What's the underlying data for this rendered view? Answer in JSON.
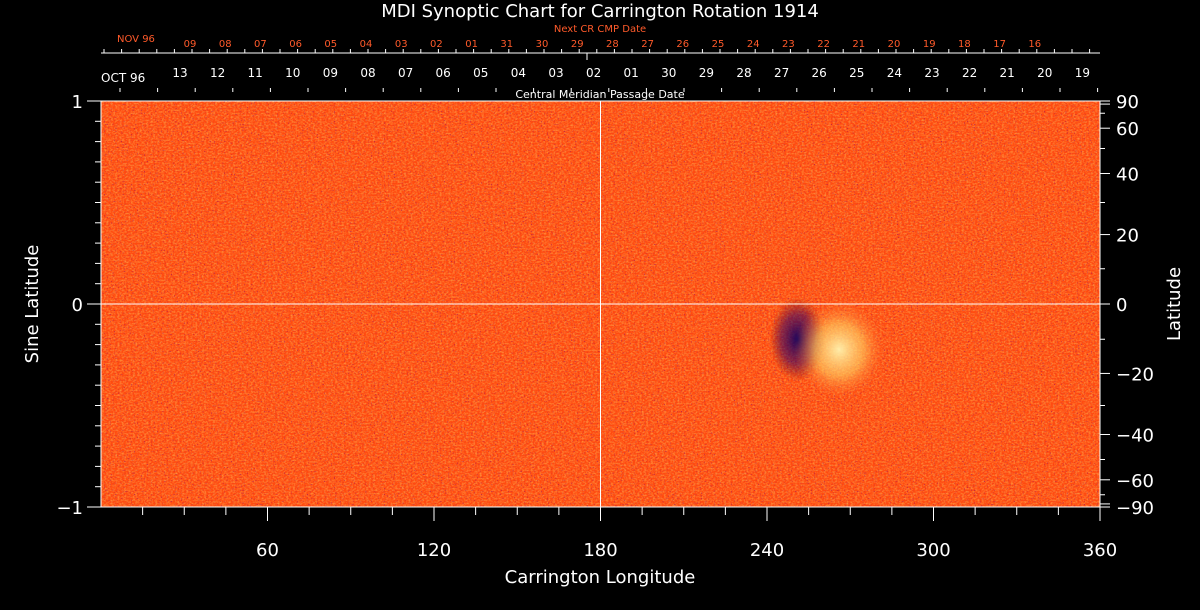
{
  "chart_data": {
    "type": "heatmap",
    "title": "MDI Synoptic Chart for Carrington Rotation 1914",
    "xlabel": "Carrington Longitude",
    "ylabel": "Sine Latitude",
    "ylabel_right": "Latitude",
    "xlim": [
      0,
      360
    ],
    "ylim": [
      -1,
      1
    ],
    "x_ticks": [
      60,
      120,
      180,
      240,
      300,
      360
    ],
    "y_ticks": [
      "1",
      "0",
      "−1"
    ],
    "y_tick_values": [
      1,
      0,
      -1
    ],
    "right_ticks": [
      90,
      60,
      40,
      20,
      0,
      -20,
      -40,
      -60,
      -90
    ],
    "right_tick_labels": [
      "90",
      "60",
      "40",
      "20",
      "0",
      "−20",
      "−40",
      "−60",
      "−90"
    ],
    "grid": "crosshair at longitude 180 and sine latitude 0",
    "top_axis_label": "Central Meridian Passage Date",
    "top_month_label": "OCT 96",
    "cmp_dates": [
      "13",
      "12",
      "11",
      "10",
      "09",
      "08",
      "07",
      "06",
      "05",
      "04",
      "03",
      "02",
      "01",
      "30",
      "29",
      "28",
      "27",
      "26",
      "25",
      "24",
      "23",
      "22",
      "21",
      "20",
      "19"
    ],
    "next_axis_label": "Next CR CMP Date",
    "next_month_label": "NOV 96",
    "next_dates": [
      "09",
      "08",
      "07",
      "06",
      "05",
      "04",
      "03",
      "02",
      "01",
      "31",
      "30",
      "29",
      "28",
      "27",
      "26",
      "25",
      "24",
      "23",
      "22",
      "21",
      "20",
      "19",
      "18",
      "17",
      "16"
    ],
    "features": [
      {
        "type": "active-region-negative",
        "longitude": 251,
        "latitude": -10
      },
      {
        "type": "active-region-positive",
        "longitude": 266,
        "latitude": -13
      }
    ],
    "colors": {
      "background_field": "#ff4a10",
      "positive_polarity": "#ffe27a",
      "negative_polarity": "#1a0060",
      "next_cr_labels": "#ff5a2a",
      "text": "#ffffff"
    }
  }
}
